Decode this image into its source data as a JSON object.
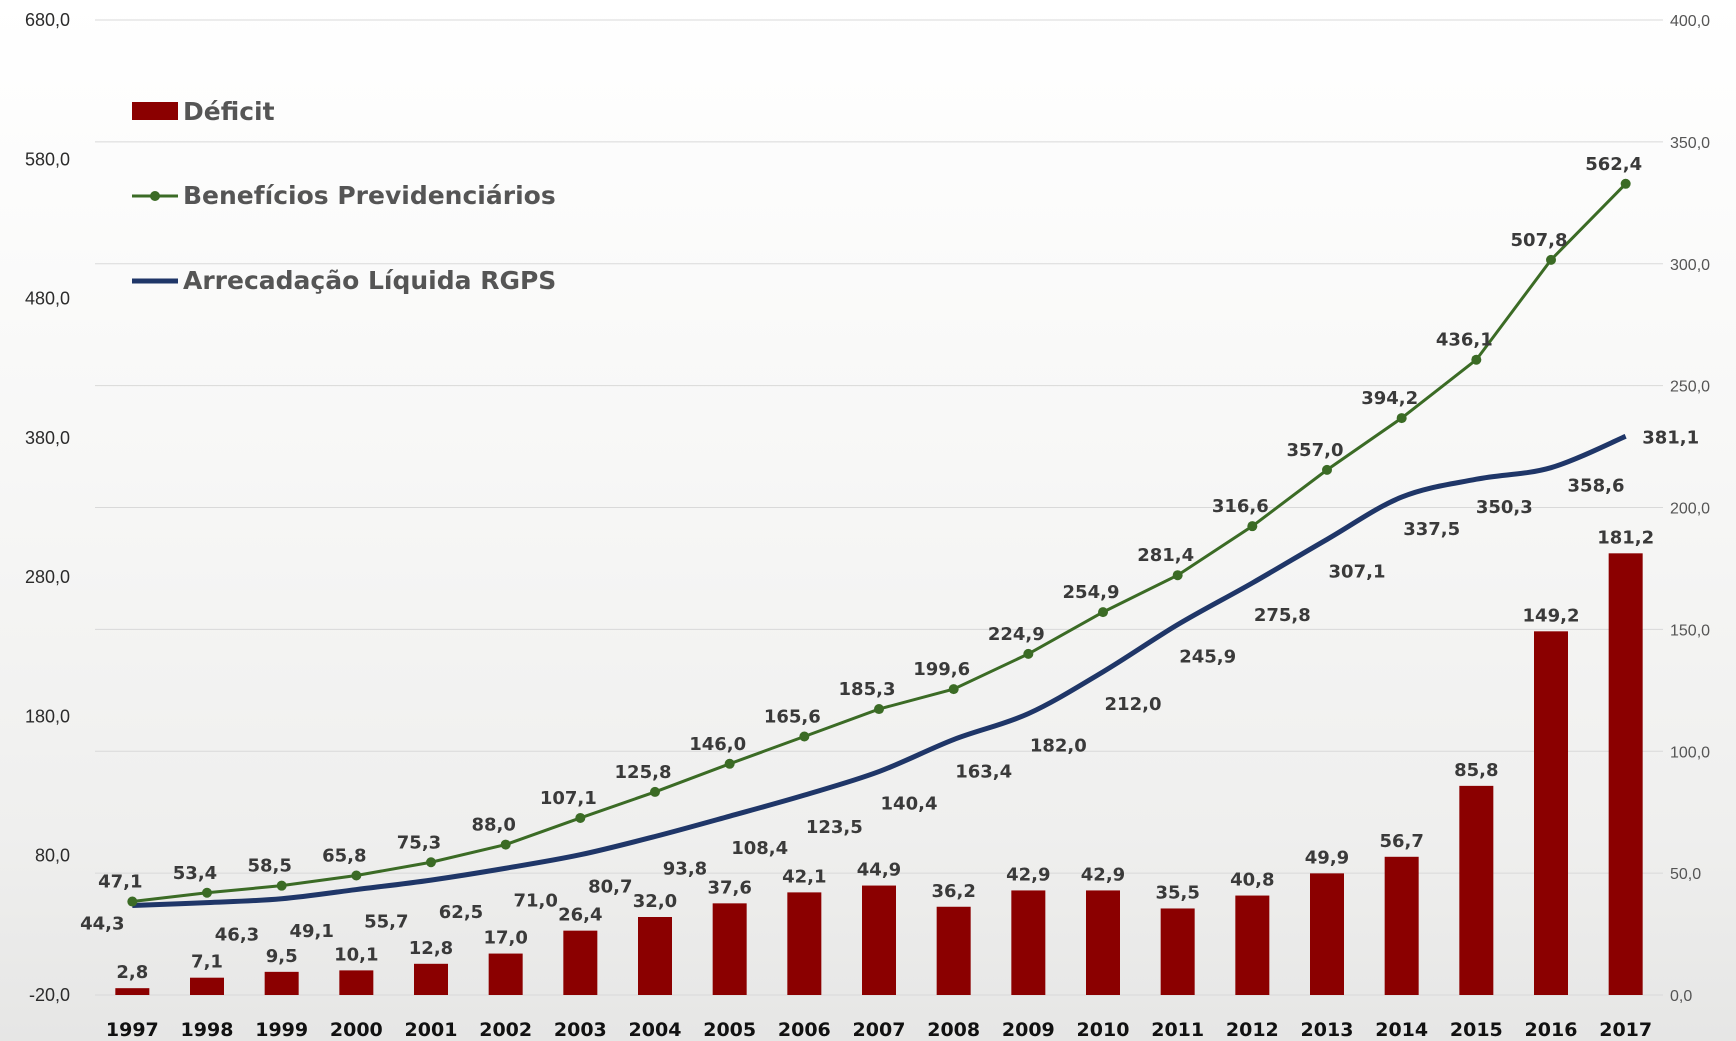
{
  "chart_data": {
    "type": "bar",
    "categories": [
      "1997",
      "1998",
      "1999",
      "2000",
      "2001",
      "2002",
      "2003",
      "2004",
      "2005",
      "2006",
      "2007",
      "2008",
      "2009",
      "2010",
      "2011",
      "2012",
      "2013",
      "2014",
      "2015",
      "2016",
      "2017"
    ],
    "series": [
      {
        "name": "Déficit",
        "kind": "bar",
        "axis": "right",
        "color": "#8b0000",
        "values": [
          2.8,
          7.1,
          9.5,
          10.1,
          12.8,
          17.0,
          26.4,
          32.0,
          37.6,
          42.1,
          44.9,
          36.2,
          42.9,
          42.9,
          35.5,
          40.8,
          49.9,
          56.7,
          85.8,
          149.2,
          181.2
        ],
        "labels": [
          "2,8",
          "7,1",
          "9,5",
          "10,1",
          "12,8",
          "17,0",
          "26,4",
          "32,0",
          "37,6",
          "42,1",
          "44,9",
          "36,2",
          "42,9",
          "42,9",
          "35,5",
          "40,8",
          "49,9",
          "56,7",
          "85,8",
          "149,2",
          "181,2"
        ]
      },
      {
        "name": "Benefícios Previdenciários",
        "kind": "line-marker",
        "axis": "left",
        "color": "#3b6b25",
        "values": [
          47.1,
          53.4,
          58.5,
          65.8,
          75.3,
          88.0,
          107.1,
          125.8,
          146.0,
          165.6,
          185.3,
          199.6,
          224.9,
          254.9,
          281.4,
          316.6,
          357.0,
          394.2,
          436.1,
          507.8,
          562.4
        ],
        "labels": [
          "47,1",
          "53,4",
          "58,5",
          "65,8",
          "75,3",
          "88,0",
          "107,1",
          "125,8",
          "146,0",
          "165,6",
          "185,3",
          "199,6",
          "224,9",
          "254,9",
          "281,4",
          "316,6",
          "357,0",
          "394,2",
          "436,1",
          "507,8",
          "562,4"
        ]
      },
      {
        "name": "Arrecadação Líquida RGPS",
        "kind": "line",
        "axis": "left",
        "color": "#1f3668",
        "values": [
          44.3,
          46.3,
          49.1,
          55.7,
          62.5,
          71.0,
          80.7,
          93.8,
          108.4,
          123.5,
          140.4,
          163.4,
          182.0,
          212.0,
          245.9,
          275.8,
          307.1,
          337.5,
          350.3,
          358.6,
          381.1
        ],
        "labels": [
          "44,3",
          "46,3",
          "49,1",
          "55,7",
          "62,5",
          "71,0",
          "80,7",
          "93,8",
          "108,4",
          "123,5",
          "140,4",
          "163,4",
          "182,0",
          "212,0",
          "245,9",
          "275,8",
          "307,1",
          "337,5",
          "350,3",
          "358,6",
          "381,1"
        ]
      }
    ],
    "y_left": {
      "range": [
        -20,
        680
      ],
      "ticks": [
        -20,
        80,
        180,
        280,
        380,
        480,
        580,
        680
      ],
      "tick_labels": [
        "-20,0",
        "80,0",
        "180,0",
        "280,0",
        "380,0",
        "480,0",
        "580,0",
        "680,0"
      ]
    },
    "y_right": {
      "range": [
        0,
        400
      ],
      "ticks": [
        0,
        50,
        100,
        150,
        200,
        250,
        300,
        350,
        400
      ],
      "tick_labels": [
        "0,0",
        "50,0",
        "100,0",
        "150,0",
        "200,0",
        "250,0",
        "300,0",
        "350,0",
        "400,0"
      ]
    },
    "grid": true,
    "legend_position": "top-left",
    "title": "",
    "xlabel": "",
    "ylabel": ""
  }
}
